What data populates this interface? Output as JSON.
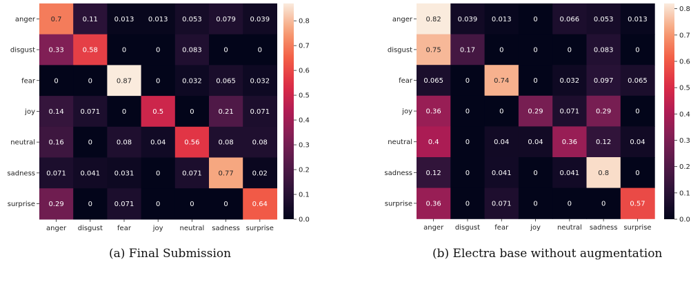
{
  "chart_data": [
    {
      "type": "heatmap",
      "caption": "(a) Final Submission",
      "categories": [
        "anger",
        "disgust",
        "fear",
        "joy",
        "neutral",
        "sadness",
        "surprise"
      ],
      "matrix": [
        [
          0.7,
          0.11,
          0.013,
          0.013,
          0.053,
          0.079,
          0.039
        ],
        [
          0.33,
          0.58,
          0,
          0,
          0.083,
          0,
          0
        ],
        [
          0,
          0,
          0.87,
          0,
          0.032,
          0.065,
          0.032
        ],
        [
          0.14,
          0.071,
          0,
          0.5,
          0,
          0.21,
          0.071
        ],
        [
          0.16,
          0,
          0.08,
          0.04,
          0.56,
          0.08,
          0.08
        ],
        [
          0.071,
          0.041,
          0.031,
          0,
          0.071,
          0.77,
          0.02
        ],
        [
          0.29,
          0,
          0.071,
          0,
          0,
          0,
          0.64
        ]
      ],
      "cell_labels": [
        [
          "0.7",
          "0.11",
          "0.013",
          "0.013",
          "0.053",
          "0.079",
          "0.039"
        ],
        [
          "0.33",
          "0.58",
          "0",
          "0",
          "0.083",
          "0",
          "0"
        ],
        [
          "0",
          "0",
          "0.87",
          "0",
          "0.032",
          "0.065",
          "0.032"
        ],
        [
          "0.14",
          "0.071",
          "0",
          "0.5",
          "0",
          "0.21",
          "0.071"
        ],
        [
          "0.16",
          "0",
          "0.08",
          "0.04",
          "0.56",
          "0.08",
          "0.08"
        ],
        [
          "0.071",
          "0.041",
          "0.031",
          "0",
          "0.071",
          "0.77",
          "0.02"
        ],
        [
          "0.29",
          "0",
          "0.071",
          "0",
          "0",
          "0",
          "0.64"
        ]
      ],
      "colorbar": {
        "vmin": 0,
        "vmax": 0.87,
        "ticks": [
          0,
          0.1,
          0.2,
          0.3,
          0.4,
          0.5,
          0.6,
          0.7,
          0.8
        ],
        "tick_labels": [
          "0.0",
          "0.1",
          "0.2",
          "0.3",
          "0.4",
          "0.5",
          "0.6",
          "0.7",
          "0.8"
        ]
      },
      "colormap": "rocket"
    },
    {
      "type": "heatmap",
      "caption": "(b) Electra base without augmentation",
      "categories": [
        "anger",
        "disgust",
        "fear",
        "joy",
        "neutral",
        "sadness",
        "surprise"
      ],
      "matrix": [
        [
          0.82,
          0.039,
          0.013,
          0,
          0.066,
          0.053,
          0.013
        ],
        [
          0.75,
          0.17,
          0,
          0,
          0,
          0.083,
          0
        ],
        [
          0.065,
          0,
          0.74,
          0,
          0.032,
          0.097,
          0.065
        ],
        [
          0.36,
          0,
          0,
          0.29,
          0.071,
          0.29,
          0
        ],
        [
          0.4,
          0,
          0.04,
          0.04,
          0.36,
          0.12,
          0.04
        ],
        [
          0.12,
          0,
          0.041,
          0,
          0.041,
          0.8,
          0
        ],
        [
          0.36,
          0,
          0.071,
          0,
          0,
          0,
          0.57
        ]
      ],
      "cell_labels": [
        [
          "0.82",
          "0.039",
          "0.013",
          "0",
          "0.066",
          "0.053",
          "0.013"
        ],
        [
          "0.75",
          "0.17",
          "0",
          "0",
          "0",
          "0.083",
          "0"
        ],
        [
          "0.065",
          "0",
          "0.74",
          "0",
          "0.032",
          "0.097",
          "0.065"
        ],
        [
          "0.36",
          "0",
          "0",
          "0.29",
          "0.071",
          "0.29",
          "0"
        ],
        [
          "0.4",
          "0",
          "0.04",
          "0.04",
          "0.36",
          "0.12",
          "0.04"
        ],
        [
          "0.12",
          "0",
          "0.041",
          "0",
          "0.041",
          "0.8",
          "0"
        ],
        [
          "0.36",
          "0",
          "0.071",
          "0",
          "0",
          "0",
          "0.57"
        ]
      ],
      "colorbar": {
        "vmin": 0,
        "vmax": 0.82,
        "ticks": [
          0,
          0.1,
          0.2,
          0.3,
          0.4,
          0.5,
          0.6,
          0.7,
          0.8
        ],
        "tick_labels": [
          "0.0",
          "0.1",
          "0.2",
          "0.3",
          "0.4",
          "0.5",
          "0.6",
          "0.7",
          "0.8"
        ]
      },
      "colormap": "rocket"
    }
  ]
}
